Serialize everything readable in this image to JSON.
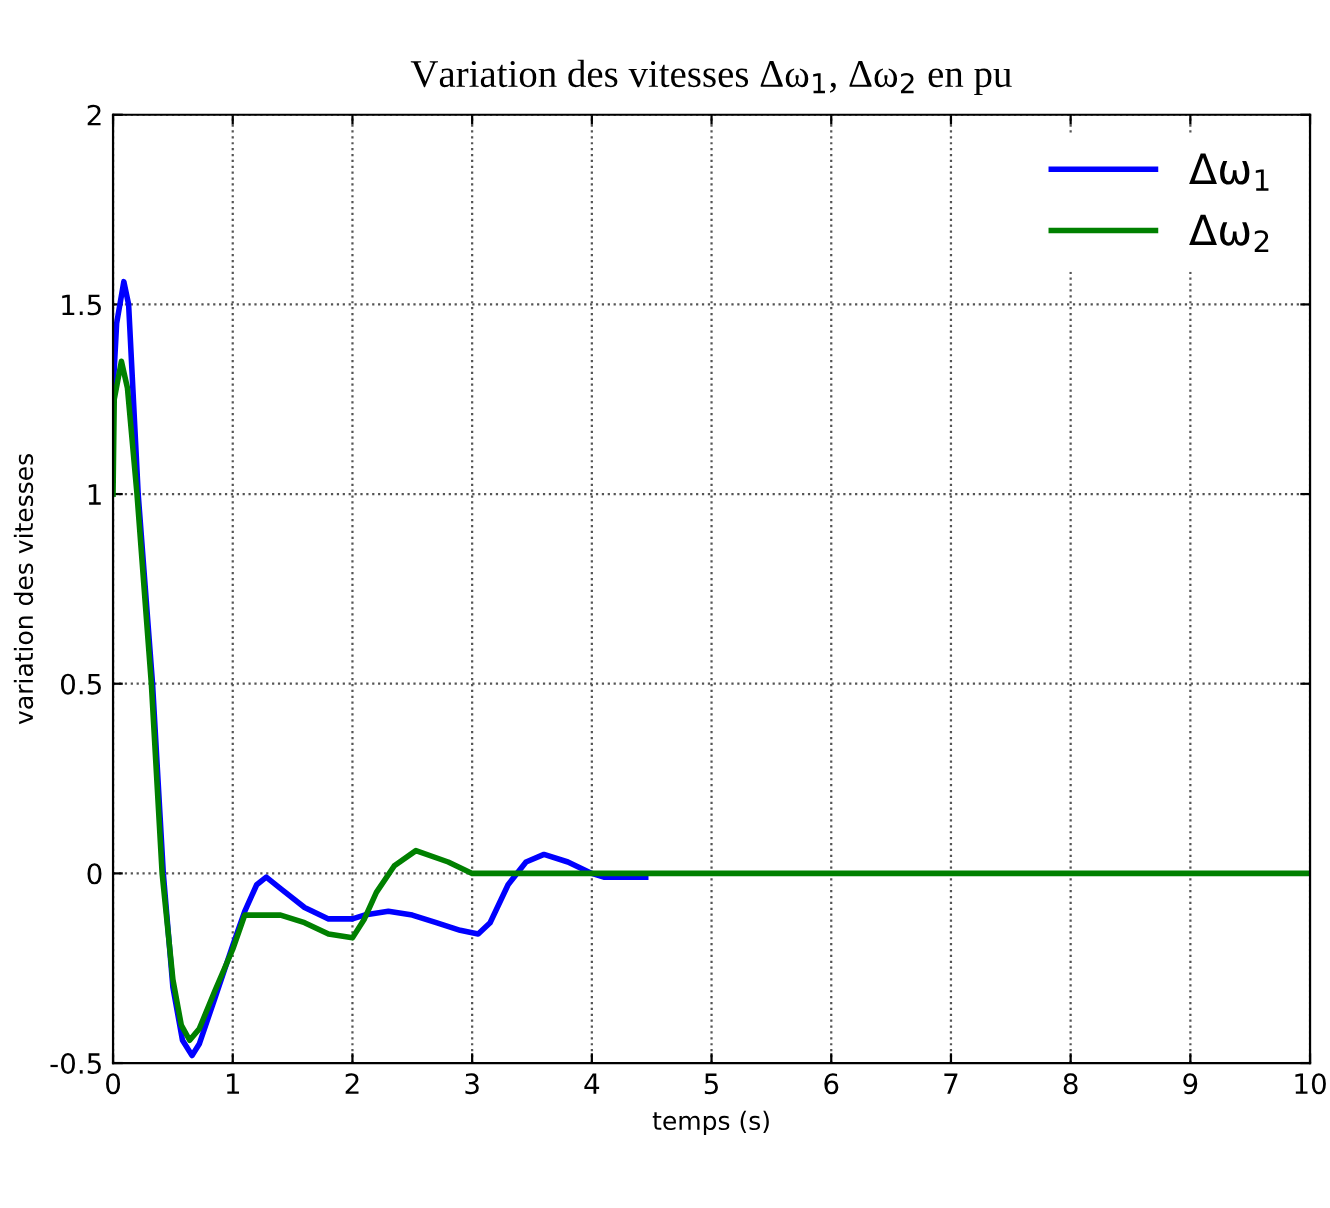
{
  "chart_data": {
    "type": "line",
    "title": "Variation des vitesses Δω$_{1}$, Δω$_{2}$ en pu",
    "xlabel": "temps (s)",
    "ylabel": "variation des vitesses",
    "series": [
      {
        "name": "Δω$_{1}$",
        "color": "#0000ff",
        "x": [
          0,
          0.03,
          0.09,
          0.13,
          0.21,
          0.33,
          0.42,
          0.5,
          0.58,
          0.66,
          0.72,
          0.85,
          1.0,
          1.1,
          1.2,
          1.28,
          1.4,
          1.6,
          1.8,
          2.0,
          2.1,
          2.3,
          2.5,
          2.7,
          2.9,
          3.05,
          3.15,
          3.3,
          3.45,
          3.6,
          3.8,
          4.0,
          4.1,
          4.45
        ],
        "values": [
          1.27,
          1.45,
          1.56,
          1.5,
          1.0,
          0.5,
          0.0,
          -0.3,
          -0.44,
          -0.48,
          -0.45,
          -0.33,
          -0.19,
          -0.1,
          -0.03,
          -0.01,
          -0.04,
          -0.09,
          -0.12,
          -0.12,
          -0.11,
          -0.1,
          -0.11,
          -0.13,
          -0.15,
          -0.16,
          -0.13,
          -0.03,
          0.03,
          0.05,
          0.03,
          0.0,
          -0.01,
          -0.01
        ]
      },
      {
        "name": "Δω$_{2}$",
        "color": "#008000",
        "x": [
          0,
          0.01,
          0.07,
          0.12,
          0.2,
          0.32,
          0.41,
          0.5,
          0.57,
          0.64,
          0.72,
          0.85,
          1.0,
          1.1,
          1.4,
          1.6,
          1.8,
          2.0,
          2.1,
          2.2,
          2.35,
          2.53,
          2.8,
          3.0,
          10
        ],
        "values": [
          1.0,
          1.25,
          1.35,
          1.28,
          1.0,
          0.5,
          0.0,
          -0.28,
          -0.4,
          -0.44,
          -0.41,
          -0.31,
          -0.2,
          -0.11,
          -0.11,
          -0.13,
          -0.16,
          -0.17,
          -0.12,
          -0.05,
          0.02,
          0.06,
          0.03,
          0.0,
          0.0
        ]
      }
    ],
    "xlim": [
      0,
      10
    ],
    "xticks": [
      0,
      1,
      2,
      3,
      4,
      5,
      6,
      7,
      8,
      9,
      10
    ],
    "ylim": [
      -0.5,
      2
    ],
    "yticks": [
      -0.5,
      0,
      0.5,
      1,
      1.5,
      2
    ],
    "grid": true,
    "legend": "top right",
    "line_style": "solid"
  }
}
